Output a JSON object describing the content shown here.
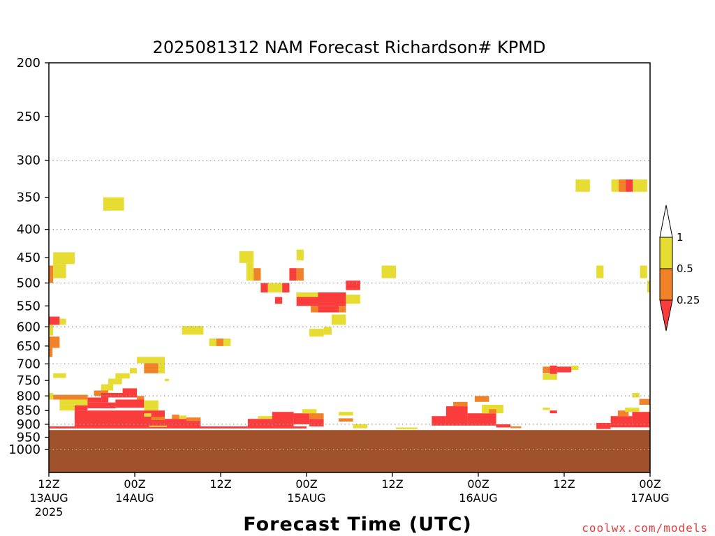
{
  "chart_data": {
    "type": "heatmap",
    "title": "2025081312 NAM Forecast Richardson# KPMD",
    "xlabel": "Forecast Time (UTC)",
    "ylabel": "",
    "watermark": "coolwx.com/models",
    "y_scale": "log",
    "y_range": [
      200,
      1100
    ],
    "y_ticks": [
      200,
      250,
      300,
      350,
      400,
      450,
      500,
      550,
      600,
      650,
      700,
      750,
      800,
      850,
      900,
      950,
      1000
    ],
    "y_tick_labels": [
      "200",
      "250",
      "300",
      "350",
      "400",
      "450",
      "500",
      "550",
      "600",
      "650",
      "700",
      "750",
      "800",
      "850",
      "900",
      "950",
      "1000"
    ],
    "y_grid_levels": [
      300,
      400,
      500,
      600,
      700,
      800,
      900,
      1000
    ],
    "grid": "dotted horizontal",
    "x_range_hours": [
      0,
      84
    ],
    "x_ticks": [
      {
        "hour": 0,
        "label": "12Z",
        "date": "13AUG",
        "year": "2025"
      },
      {
        "hour": 12,
        "label": "00Z",
        "date": "14AUG",
        "year": ""
      },
      {
        "hour": 24,
        "label": "12Z",
        "date": "",
        "year": ""
      },
      {
        "hour": 36,
        "label": "00Z",
        "date": "15AUG",
        "year": ""
      },
      {
        "hour": 48,
        "label": "12Z",
        "date": "",
        "year": ""
      },
      {
        "hour": 60,
        "label": "00Z",
        "date": "16AUG",
        "year": ""
      },
      {
        "hour": 72,
        "label": "12Z",
        "date": "",
        "year": ""
      },
      {
        "hour": 84,
        "label": "00Z",
        "date": "17AUG",
        "year": ""
      }
    ],
    "legend": {
      "placement": "right",
      "labels": [
        "1",
        "0.5",
        "0.25"
      ],
      "bins": [
        {
          "range": "0.5–1",
          "color": "#e6dc32"
        },
        {
          "range": "0.25–0.5",
          "color": "#f08228"
        },
        {
          "range": "<0.25",
          "color": "#fa3c3c"
        }
      ]
    },
    "colors": {
      "low": "#fa3c3c",
      "mid": "#f08228",
      "high": "#e6dc32",
      "ground": "#a0522d"
    },
    "ground_surface_hpa": 922,
    "cells": [
      {
        "t0": 0.0,
        "t1": 0.6,
        "p0": 465,
        "p1": 500,
        "bin": "mid"
      },
      {
        "t0": 0.6,
        "t1": 3.6,
        "p0": 440,
        "p1": 462,
        "bin": "high"
      },
      {
        "t0": 0.6,
        "t1": 2.4,
        "p0": 462,
        "p1": 490,
        "bin": "high"
      },
      {
        "t0": 0.0,
        "t1": 1.5,
        "p0": 575,
        "p1": 595,
        "bin": "low"
      },
      {
        "t0": 1.5,
        "t1": 2.4,
        "p0": 580,
        "p1": 595,
        "bin": "high"
      },
      {
        "t0": 0.0,
        "t1": 0.6,
        "p0": 595,
        "p1": 622,
        "bin": "high"
      },
      {
        "t0": 0.0,
        "t1": 1.5,
        "p0": 625,
        "p1": 655,
        "bin": "mid"
      },
      {
        "t0": 0.0,
        "t1": 0.5,
        "p0": 655,
        "p1": 680,
        "bin": "mid"
      },
      {
        "t0": 0.6,
        "t1": 2.4,
        "p0": 728,
        "p1": 742,
        "bin": "high"
      },
      {
        "t0": 0.0,
        "t1": 0.6,
        "p0": 790,
        "p1": 812,
        "bin": "high"
      },
      {
        "t0": 0.6,
        "t1": 5.4,
        "p0": 796,
        "p1": 812,
        "bin": "mid"
      },
      {
        "t0": 1.5,
        "t1": 5.4,
        "p0": 812,
        "p1": 832,
        "bin": "high"
      },
      {
        "t0": 1.5,
        "t1": 3.6,
        "p0": 832,
        "p1": 850,
        "bin": "high"
      },
      {
        "t0": 3.6,
        "t1": 5.4,
        "p0": 832,
        "p1": 850,
        "bin": "low"
      },
      {
        "t0": 5.4,
        "t1": 8.3,
        "p0": 805,
        "p1": 822,
        "bin": "low"
      },
      {
        "t0": 6.3,
        "t1": 8.3,
        "p0": 782,
        "p1": 800,
        "bin": "mid"
      },
      {
        "t0": 7.3,
        "t1": 9.0,
        "p0": 762,
        "p1": 782,
        "bin": "high"
      },
      {
        "t0": 8.3,
        "t1": 10.2,
        "p0": 744,
        "p1": 762,
        "bin": "high"
      },
      {
        "t0": 9.3,
        "t1": 11.3,
        "p0": 728,
        "p1": 744,
        "bin": "high"
      },
      {
        "t0": 11.3,
        "t1": 12.3,
        "p0": 712,
        "p1": 728,
        "bin": "high"
      },
      {
        "t0": 12.3,
        "t1": 16.2,
        "p0": 680,
        "p1": 698,
        "bin": "high"
      },
      {
        "t0": 13.3,
        "t1": 15.3,
        "p0": 698,
        "p1": 728,
        "bin": "mid"
      },
      {
        "t0": 15.3,
        "t1": 16.2,
        "p0": 698,
        "p1": 728,
        "bin": "high"
      },
      {
        "t0": 16.2,
        "t1": 16.8,
        "p0": 745,
        "p1": 752,
        "bin": "high"
      },
      {
        "t0": 7.3,
        "t1": 12.3,
        "p0": 790,
        "p1": 805,
        "bin": "low"
      },
      {
        "t0": 10.3,
        "t1": 12.3,
        "p0": 775,
        "p1": 790,
        "bin": "low"
      },
      {
        "t0": 12.3,
        "t1": 13.3,
        "p0": 800,
        "p1": 815,
        "bin": "mid"
      },
      {
        "t0": 5.4,
        "t1": 9.3,
        "p0": 822,
        "p1": 842,
        "bin": "low"
      },
      {
        "t0": 9.3,
        "t1": 13.3,
        "p0": 812,
        "p1": 840,
        "bin": "low"
      },
      {
        "t0": 13.3,
        "t1": 15.3,
        "p0": 815,
        "p1": 850,
        "bin": "high"
      },
      {
        "t0": 3.6,
        "t1": 16.2,
        "p0": 850,
        "p1": 908,
        "bin": "low"
      },
      {
        "t0": 13.3,
        "t1": 14.3,
        "p0": 860,
        "p1": 872,
        "bin": "high"
      },
      {
        "t0": 14.3,
        "t1": 16.2,
        "p0": 872,
        "p1": 885,
        "bin": "mid"
      },
      {
        "t0": 16.2,
        "t1": 21.2,
        "p0": 880,
        "p1": 908,
        "bin": "low"
      },
      {
        "t0": 17.2,
        "t1": 18.2,
        "p0": 865,
        "p1": 880,
        "bin": "mid"
      },
      {
        "t0": 18.2,
        "t1": 19.2,
        "p0": 868,
        "p1": 880,
        "bin": "high"
      },
      {
        "t0": 19.2,
        "t1": 21.2,
        "p0": 875,
        "p1": 888,
        "bin": "mid"
      },
      {
        "t0": 0.0,
        "t1": 36.0,
        "p0": 908,
        "p1": 916,
        "bin": "low"
      },
      {
        "t0": 14.0,
        "t1": 16.5,
        "p0": 905,
        "p1": 910,
        "bin": "high"
      },
      {
        "t0": 27.8,
        "t1": 31.2,
        "p0": 880,
        "p1": 910,
        "bin": "low"
      },
      {
        "t0": 29.2,
        "t1": 31.2,
        "p0": 870,
        "p1": 880,
        "bin": "high"
      },
      {
        "t0": 31.2,
        "t1": 34.2,
        "p0": 855,
        "p1": 908,
        "bin": "low"
      },
      {
        "t0": 34.2,
        "t1": 36.4,
        "p0": 860,
        "p1": 900,
        "bin": "low"
      },
      {
        "t0": 35.4,
        "t1": 37.4,
        "p0": 845,
        "p1": 860,
        "bin": "high"
      },
      {
        "t0": 36.4,
        "t1": 38.4,
        "p0": 860,
        "p1": 880,
        "bin": "mid"
      },
      {
        "t0": 36.4,
        "t1": 38.4,
        "p0": 880,
        "p1": 908,
        "bin": "low"
      },
      {
        "t0": 40.5,
        "t1": 42.5,
        "p0": 855,
        "p1": 868,
        "bin": "high"
      },
      {
        "t0": 40.5,
        "t1": 42.5,
        "p0": 878,
        "p1": 890,
        "bin": "mid"
      },
      {
        "t0": 42.5,
        "t1": 44.5,
        "p0": 900,
        "p1": 915,
        "bin": "high"
      },
      {
        "t0": 48.5,
        "t1": 51.5,
        "p0": 912,
        "p1": 918,
        "bin": "high"
      },
      {
        "t0": 53.5,
        "t1": 55.5,
        "p0": 870,
        "p1": 905,
        "bin": "low"
      },
      {
        "t0": 55.5,
        "t1": 58.5,
        "p0": 835,
        "p1": 905,
        "bin": "low"
      },
      {
        "t0": 56.5,
        "t1": 58.5,
        "p0": 820,
        "p1": 835,
        "bin": "mid"
      },
      {
        "t0": 58.5,
        "t1": 62.5,
        "p0": 860,
        "p1": 905,
        "bin": "low"
      },
      {
        "t0": 59.5,
        "t1": 61.5,
        "p0": 800,
        "p1": 820,
        "bin": "mid"
      },
      {
        "t0": 60.5,
        "t1": 63.5,
        "p0": 830,
        "p1": 860,
        "bin": "high"
      },
      {
        "t0": 61.5,
        "t1": 62.5,
        "p0": 845,
        "p1": 860,
        "bin": "mid"
      },
      {
        "t0": 62.5,
        "t1": 64.5,
        "p0": 900,
        "p1": 912,
        "bin": "low"
      },
      {
        "t0": 64.5,
        "t1": 66.0,
        "p0": 908,
        "p1": 915,
        "bin": "mid"
      },
      {
        "t0": 69.0,
        "t1": 70.0,
        "p0": 840,
        "p1": 848,
        "bin": "high"
      },
      {
        "t0": 70.0,
        "t1": 71.0,
        "p0": 850,
        "p1": 860,
        "bin": "low"
      },
      {
        "t0": 76.5,
        "t1": 78.5,
        "p0": 895,
        "p1": 918,
        "bin": "low"
      },
      {
        "t0": 78.5,
        "t1": 81.5,
        "p0": 870,
        "p1": 912,
        "bin": "low"
      },
      {
        "t0": 79.5,
        "t1": 81.0,
        "p0": 850,
        "p1": 870,
        "bin": "mid"
      },
      {
        "t0": 80.5,
        "t1": 82.5,
        "p0": 840,
        "p1": 855,
        "bin": "high"
      },
      {
        "t0": 81.5,
        "t1": 84.0,
        "p0": 855,
        "p1": 912,
        "bin": "low"
      },
      {
        "t0": 82.5,
        "t1": 84.0,
        "p0": 810,
        "p1": 830,
        "bin": "mid"
      },
      {
        "t0": 81.5,
        "t1": 82.5,
        "p0": 790,
        "p1": 805,
        "bin": "high"
      },
      {
        "t0": 7.6,
        "t1": 10.5,
        "p0": 350,
        "p1": 370,
        "bin": "high"
      },
      {
        "t0": 18.6,
        "t1": 21.6,
        "p0": 598,
        "p1": 620,
        "bin": "high"
      },
      {
        "t0": 22.4,
        "t1": 23.4,
        "p0": 630,
        "p1": 650,
        "bin": "high"
      },
      {
        "t0": 23.4,
        "t1": 24.4,
        "p0": 630,
        "p1": 650,
        "bin": "mid"
      },
      {
        "t0": 24.4,
        "t1": 25.4,
        "p0": 630,
        "p1": 650,
        "bin": "high"
      },
      {
        "t0": 26.6,
        "t1": 28.6,
        "p0": 438,
        "p1": 460,
        "bin": "high"
      },
      {
        "t0": 27.6,
        "t1": 28.6,
        "p0": 460,
        "p1": 495,
        "bin": "high"
      },
      {
        "t0": 28.6,
        "t1": 29.6,
        "p0": 470,
        "p1": 495,
        "bin": "mid"
      },
      {
        "t0": 29.6,
        "t1": 30.6,
        "p0": 500,
        "p1": 520,
        "bin": "low"
      },
      {
        "t0": 30.6,
        "t1": 32.6,
        "p0": 500,
        "p1": 520,
        "bin": "high"
      },
      {
        "t0": 32.6,
        "t1": 33.6,
        "p0": 500,
        "p1": 520,
        "bin": "low"
      },
      {
        "t0": 31.6,
        "t1": 32.6,
        "p0": 530,
        "p1": 545,
        "bin": "low"
      },
      {
        "t0": 33.6,
        "t1": 34.6,
        "p0": 470,
        "p1": 495,
        "bin": "low"
      },
      {
        "t0": 34.6,
        "t1": 35.6,
        "p0": 470,
        "p1": 495,
        "bin": "mid"
      },
      {
        "t0": 34.6,
        "t1": 35.6,
        "p0": 435,
        "p1": 455,
        "bin": "high"
      },
      {
        "t0": 34.6,
        "t1": 41.5,
        "p0": 520,
        "p1": 550,
        "bin": "low"
      },
      {
        "t0": 34.6,
        "t1": 37.6,
        "p0": 520,
        "p1": 530,
        "bin": "high"
      },
      {
        "t0": 37.6,
        "t1": 40.5,
        "p0": 550,
        "p1": 565,
        "bin": "low"
      },
      {
        "t0": 36.6,
        "t1": 37.6,
        "p0": 550,
        "p1": 565,
        "bin": "mid"
      },
      {
        "t0": 40.5,
        "t1": 41.5,
        "p0": 550,
        "p1": 565,
        "bin": "mid"
      },
      {
        "t0": 41.5,
        "t1": 42.5,
        "p0": 525,
        "p1": 545,
        "bin": "high"
      },
      {
        "t0": 42.5,
        "t1": 43.5,
        "p0": 525,
        "p1": 545,
        "bin": "high"
      },
      {
        "t0": 41.5,
        "t1": 42.5,
        "p0": 495,
        "p1": 515,
        "bin": "low"
      },
      {
        "t0": 42.5,
        "t1": 43.5,
        "p0": 495,
        "p1": 515,
        "bin": "low"
      },
      {
        "t0": 39.5,
        "t1": 41.5,
        "p0": 570,
        "p1": 595,
        "bin": "high"
      },
      {
        "t0": 36.4,
        "t1": 38.4,
        "p0": 605,
        "p1": 625,
        "bin": "high"
      },
      {
        "t0": 38.4,
        "t1": 39.5,
        "p0": 600,
        "p1": 620,
        "bin": "high"
      },
      {
        "t0": 46.5,
        "t1": 48.5,
        "p0": 465,
        "p1": 490,
        "bin": "high"
      },
      {
        "t0": 69.0,
        "t1": 71.0,
        "p0": 730,
        "p1": 748,
        "bin": "high"
      },
      {
        "t0": 70.0,
        "t1": 71.0,
        "p0": 705,
        "p1": 730,
        "bin": "low"
      },
      {
        "t0": 71.0,
        "t1": 73.0,
        "p0": 708,
        "p1": 725,
        "bin": "low"
      },
      {
        "t0": 73.0,
        "t1": 74.0,
        "p0": 705,
        "p1": 718,
        "bin": "high"
      },
      {
        "t0": 69.0,
        "t1": 70.0,
        "p0": 708,
        "p1": 728,
        "bin": "mid"
      },
      {
        "t0": 73.6,
        "t1": 75.6,
        "p0": 325,
        "p1": 342,
        "bin": "high"
      },
      {
        "t0": 76.5,
        "t1": 77.5,
        "p0": 465,
        "p1": 490,
        "bin": "high"
      },
      {
        "t0": 78.6,
        "t1": 79.6,
        "p0": 325,
        "p1": 342,
        "bin": "high"
      },
      {
        "t0": 79.6,
        "t1": 80.6,
        "p0": 325,
        "p1": 342,
        "bin": "mid"
      },
      {
        "t0": 80.6,
        "t1": 81.6,
        "p0": 325,
        "p1": 342,
        "bin": "low"
      },
      {
        "t0": 81.6,
        "t1": 83.6,
        "p0": 325,
        "p1": 342,
        "bin": "high"
      },
      {
        "t0": 82.6,
        "t1": 83.6,
        "p0": 465,
        "p1": 490,
        "bin": "high"
      },
      {
        "t0": 83.6,
        "t1": 84.0,
        "p0": 495,
        "p1": 520,
        "bin": "high"
      }
    ]
  }
}
